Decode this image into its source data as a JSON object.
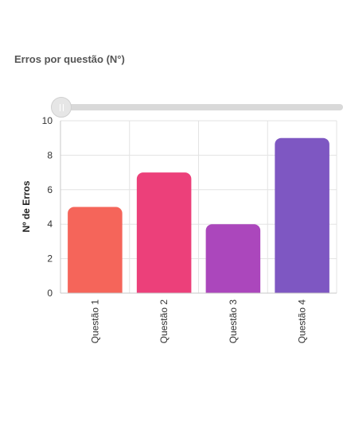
{
  "header": {
    "title": "Erros por questão (N°)"
  },
  "chart_data": {
    "type": "bar",
    "categories": [
      "Questão 1",
      "Questão 2",
      "Questão 3",
      "Questão 4"
    ],
    "values": [
      5,
      7,
      4,
      9
    ],
    "colors": [
      "#f5655a",
      "#ec407a",
      "#ab47bc",
      "#7e57c2"
    ],
    "xlabel": "",
    "ylabel": "Nº de Erros",
    "ylim": [
      0,
      10
    ],
    "yticks": [
      0,
      2,
      4,
      6,
      8,
      10
    ],
    "grid": true,
    "legend": "none"
  }
}
